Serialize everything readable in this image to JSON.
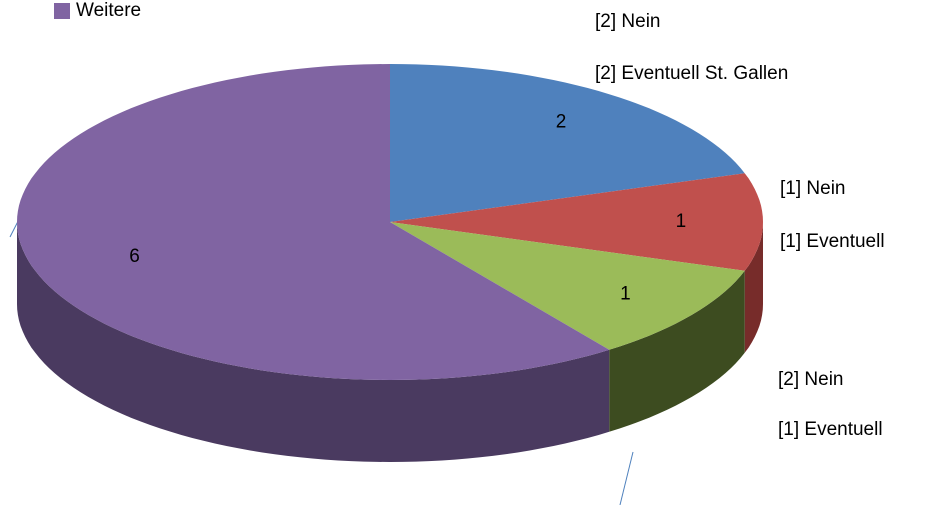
{
  "chart_data": {
    "type": "pie3d",
    "categories": [
      null,
      null,
      null,
      "Weitere"
    ],
    "values": [
      2,
      1,
      1,
      6
    ],
    "colors": [
      "#4f81bd",
      "#c0504d",
      "#9bbb59",
      "#8064a2"
    ],
    "side_colors": [
      "#2c4d75",
      "#772c2a",
      "#3d4c20",
      "#4a3a60"
    ],
    "annotations": [
      "[2] Nein",
      "[2] Eventuell St. Gallen",
      "[1] Nein",
      "[1] Eventuell",
      "[2] Nein",
      "[1] Eventuell"
    ]
  }
}
